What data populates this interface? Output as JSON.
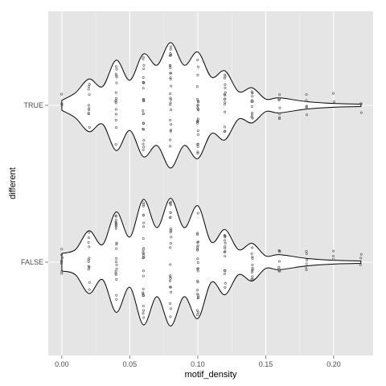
{
  "chart_data": {
    "type": "violin",
    "orientation": "horizontal",
    "xlabel": "motif_density",
    "ylabel": "different",
    "xlim": [
      -0.01,
      0.229
    ],
    "x_ticks": [
      0.0,
      0.05,
      0.1,
      0.15,
      0.2
    ],
    "x_tick_labels": [
      "0.00",
      "0.05",
      "0.10",
      "0.15",
      "0.20"
    ],
    "categories": [
      "TRUE",
      "FALSE"
    ],
    "grid": true,
    "legend": "none",
    "colors": {
      "panel_background": "#e5e5e5",
      "grid": "#ffffff",
      "violin_fill": "#ffffff",
      "violin_stroke": "#000000",
      "points": "#555555"
    },
    "series": [
      {
        "category": "TRUE",
        "density_profile": [
          [
            0.0,
            0.08
          ],
          [
            0.01,
            0.2
          ],
          [
            0.02,
            0.42
          ],
          [
            0.03,
            0.3
          ],
          [
            0.04,
            0.72
          ],
          [
            0.05,
            0.4
          ],
          [
            0.06,
            0.82
          ],
          [
            0.07,
            0.64
          ],
          [
            0.08,
            1.0
          ],
          [
            0.09,
            0.64
          ],
          [
            0.1,
            0.85
          ],
          [
            0.11,
            0.45
          ],
          [
            0.12,
            0.55
          ],
          [
            0.13,
            0.22
          ],
          [
            0.14,
            0.28
          ],
          [
            0.15,
            0.1
          ],
          [
            0.16,
            0.12
          ],
          [
            0.18,
            0.06
          ],
          [
            0.2,
            0.03
          ],
          [
            0.22,
            0.02
          ]
        ],
        "points": [
          {
            "x": 0.0,
            "count": 3
          },
          {
            "x": 0.02,
            "count": 10
          },
          {
            "x": 0.04,
            "count": 16
          },
          {
            "x": 0.06,
            "count": 24
          },
          {
            "x": 0.08,
            "count": 26
          },
          {
            "x": 0.1,
            "count": 24
          },
          {
            "x": 0.12,
            "count": 16
          },
          {
            "x": 0.14,
            "count": 12
          },
          {
            "x": 0.16,
            "count": 8
          },
          {
            "x": 0.18,
            "count": 6
          },
          {
            "x": 0.2,
            "count": 2
          },
          {
            "x": 0.22,
            "count": 3
          }
        ]
      },
      {
        "category": "FALSE",
        "density_profile": [
          [
            0.0,
            0.14
          ],
          [
            0.01,
            0.2
          ],
          [
            0.02,
            0.5
          ],
          [
            0.03,
            0.28
          ],
          [
            0.04,
            0.8
          ],
          [
            0.05,
            0.4
          ],
          [
            0.06,
            1.0
          ],
          [
            0.07,
            0.55
          ],
          [
            0.08,
            1.02
          ],
          [
            0.09,
            0.55
          ],
          [
            0.1,
            0.9
          ],
          [
            0.11,
            0.32
          ],
          [
            0.12,
            0.52
          ],
          [
            0.13,
            0.2
          ],
          [
            0.14,
            0.3
          ],
          [
            0.15,
            0.1
          ],
          [
            0.16,
            0.12
          ],
          [
            0.18,
            0.06
          ],
          [
            0.2,
            0.03
          ],
          [
            0.22,
            0.02
          ]
        ],
        "points": [
          {
            "x": 0.0,
            "count": 8
          },
          {
            "x": 0.02,
            "count": 12
          },
          {
            "x": 0.04,
            "count": 22
          },
          {
            "x": 0.06,
            "count": 26
          },
          {
            "x": 0.08,
            "count": 26
          },
          {
            "x": 0.1,
            "count": 24
          },
          {
            "x": 0.12,
            "count": 16
          },
          {
            "x": 0.14,
            "count": 12
          },
          {
            "x": 0.16,
            "count": 8
          },
          {
            "x": 0.18,
            "count": 6
          },
          {
            "x": 0.2,
            "count": 3
          },
          {
            "x": 0.22,
            "count": 3
          }
        ]
      }
    ]
  }
}
